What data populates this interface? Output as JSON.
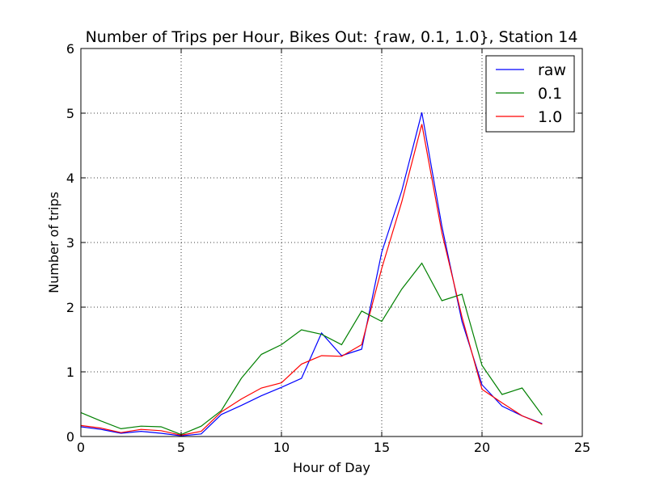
{
  "chart_data": {
    "type": "line",
    "title": "Number of Trips per Hour, Bikes Out:  {raw, 0.1, 1.0}, Station 14",
    "xlabel": "Hour of Day",
    "ylabel": "Number of trips",
    "xlim": [
      0,
      25
    ],
    "ylim": [
      0,
      6
    ],
    "xticks": [
      0,
      5,
      10,
      15,
      20,
      25
    ],
    "yticks": [
      0,
      1,
      2,
      3,
      4,
      5,
      6
    ],
    "grid": true,
    "legend_position": "top-right",
    "x": [
      0,
      1,
      2,
      3,
      4,
      5,
      6,
      7,
      8,
      9,
      10,
      11,
      12,
      13,
      14,
      15,
      16,
      17,
      18,
      19,
      20,
      21,
      22,
      23
    ],
    "series": [
      {
        "name": "raw",
        "color": "#0000ff",
        "values": [
          0.15,
          0.11,
          0.05,
          0.08,
          0.05,
          0.01,
          0.04,
          0.34,
          0.48,
          0.63,
          0.76,
          0.9,
          1.6,
          1.25,
          1.35,
          2.85,
          3.8,
          5.01,
          3.25,
          1.78,
          0.8,
          0.47,
          0.32,
          0.2
        ]
      },
      {
        "name": "0.1",
        "color": "#008000",
        "values": [
          0.37,
          0.24,
          0.12,
          0.16,
          0.15,
          0.03,
          0.16,
          0.4,
          0.9,
          1.27,
          1.42,
          1.65,
          1.58,
          1.42,
          1.94,
          1.78,
          2.28,
          2.68,
          2.1,
          2.2,
          1.1,
          0.65,
          0.75,
          0.33
        ]
      },
      {
        "name": "1.0",
        "color": "#ff0000",
        "values": [
          0.17,
          0.13,
          0.06,
          0.11,
          0.09,
          0.02,
          0.08,
          0.38,
          0.58,
          0.75,
          0.83,
          1.12,
          1.25,
          1.24,
          1.42,
          2.6,
          3.63,
          4.83,
          3.15,
          1.85,
          0.73,
          0.52,
          0.32,
          0.19
        ]
      }
    ]
  }
}
